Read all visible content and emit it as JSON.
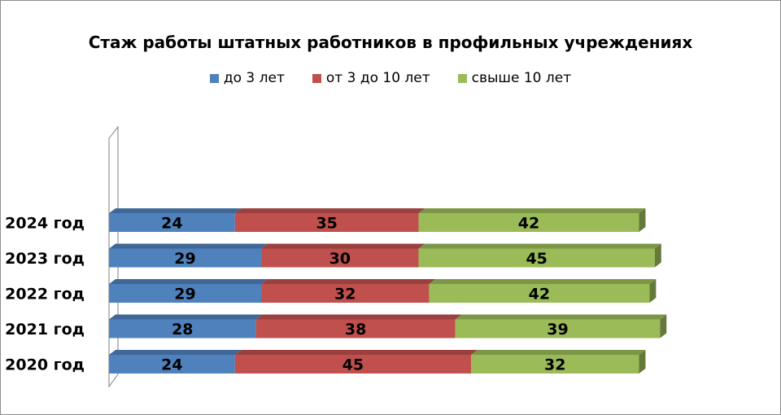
{
  "chart_data": {
    "type": "bar",
    "orientation": "horizontal",
    "stacked": true,
    "title": "Стаж работы  штатных работников  в профильных учреждениях",
    "categories": [
      "2024 год",
      "2023 год",
      "2022 год",
      "2021 год",
      "2020 год"
    ],
    "series": [
      {
        "name": "до  3 лет",
        "color": "#4F81BD",
        "values": [
          24,
          29,
          29,
          28,
          24
        ]
      },
      {
        "name": "от 3 до 10 лет",
        "color": "#C0504D",
        "values": [
          35,
          30,
          32,
          38,
          45
        ]
      },
      {
        "name": "свыше 10 лет",
        "color": "#9BBB59",
        "values": [
          42,
          45,
          42,
          39,
          32
        ]
      }
    ],
    "legend_position": "top",
    "grid": false,
    "data_labels": true
  }
}
